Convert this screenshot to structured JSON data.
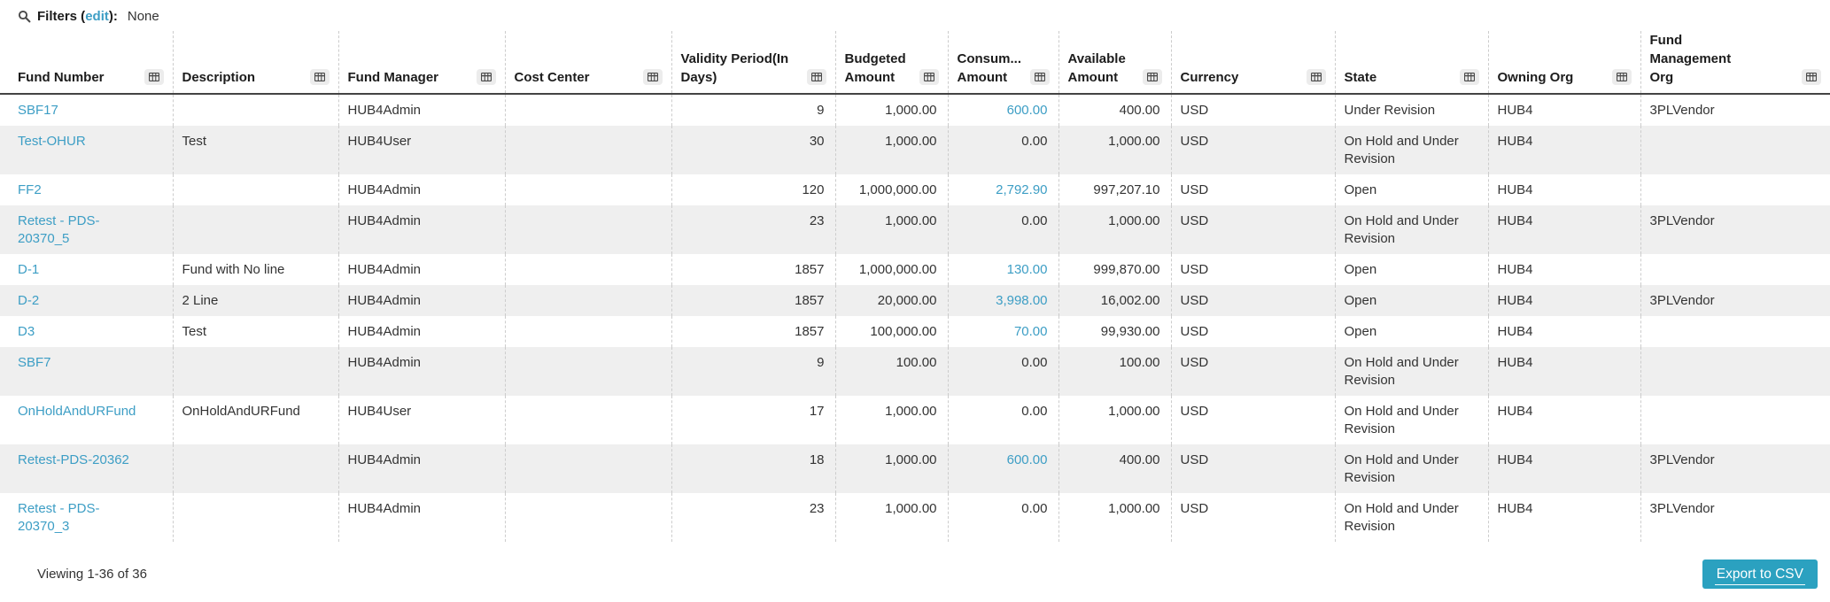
{
  "filters_bar": {
    "label_prefix": "Filters (",
    "edit_link": "edit",
    "label_suffix": "):",
    "value": "None"
  },
  "table": {
    "columns": [
      {
        "id": "fund_number",
        "label": "Fund Number",
        "align": "left"
      },
      {
        "id": "description",
        "label": "Description",
        "align": "left"
      },
      {
        "id": "fund_manager",
        "label": "Fund Manager",
        "align": "left"
      },
      {
        "id": "cost_center",
        "label": "Cost Center",
        "align": "left"
      },
      {
        "id": "validity_period",
        "label": "Validity Period(In Days)",
        "align": "right"
      },
      {
        "id": "budgeted_amount",
        "label": "Budgeted Amount",
        "align": "right"
      },
      {
        "id": "consumed_amount",
        "label": "Consum... Amount",
        "align": "right"
      },
      {
        "id": "available_amount",
        "label": "Available Amount",
        "align": "right"
      },
      {
        "id": "currency",
        "label": "Currency",
        "align": "left"
      },
      {
        "id": "state",
        "label": "State",
        "align": "left"
      },
      {
        "id": "owning_org",
        "label": "Owning Org",
        "align": "left"
      },
      {
        "id": "fund_management_org",
        "label": "Fund Management Org",
        "align": "left"
      }
    ],
    "rows": [
      {
        "fund_number": "SBF17",
        "description": "",
        "fund_manager": "HUB4Admin",
        "cost_center": "",
        "validity_period": "9",
        "budgeted_amount": "1,000.00",
        "consumed_amount": "600.00",
        "consumed_is_link": true,
        "available_amount": "400.00",
        "currency": "USD",
        "state": "Under Revision",
        "owning_org": "HUB4",
        "fund_management_org": "3PLVendor"
      },
      {
        "fund_number": "Test-OHUR",
        "description": "Test",
        "fund_manager": "HUB4User",
        "cost_center": "",
        "validity_period": "30",
        "budgeted_amount": "1,000.00",
        "consumed_amount": "0.00",
        "consumed_is_link": false,
        "available_amount": "1,000.00",
        "currency": "USD",
        "state": "On Hold and Under Revision",
        "owning_org": "HUB4",
        "fund_management_org": ""
      },
      {
        "fund_number": "FF2",
        "description": "",
        "fund_manager": "HUB4Admin",
        "cost_center": "",
        "validity_period": "120",
        "budgeted_amount": "1,000,000.00",
        "consumed_amount": "2,792.90",
        "consumed_is_link": true,
        "available_amount": "997,207.10",
        "currency": "USD",
        "state": "Open",
        "owning_org": "HUB4",
        "fund_management_org": ""
      },
      {
        "fund_number": "Retest - PDS-20370_5",
        "description": "",
        "fund_manager": "HUB4Admin",
        "cost_center": "",
        "validity_period": "23",
        "budgeted_amount": "1,000.00",
        "consumed_amount": "0.00",
        "consumed_is_link": false,
        "available_amount": "1,000.00",
        "currency": "USD",
        "state": "On Hold and Under Revision",
        "owning_org": "HUB4",
        "fund_management_org": "3PLVendor"
      },
      {
        "fund_number": "D-1",
        "description": "Fund with No line",
        "fund_manager": "HUB4Admin",
        "cost_center": "",
        "validity_period": "1857",
        "budgeted_amount": "1,000,000.00",
        "consumed_amount": "130.00",
        "consumed_is_link": true,
        "available_amount": "999,870.00",
        "currency": "USD",
        "state": "Open",
        "owning_org": "HUB4",
        "fund_management_org": ""
      },
      {
        "fund_number": "D-2",
        "description": "2 Line",
        "fund_manager": "HUB4Admin",
        "cost_center": "",
        "validity_period": "1857",
        "budgeted_amount": "20,000.00",
        "consumed_amount": "3,998.00",
        "consumed_is_link": true,
        "available_amount": "16,002.00",
        "currency": "USD",
        "state": "Open",
        "owning_org": "HUB4",
        "fund_management_org": "3PLVendor"
      },
      {
        "fund_number": "D3",
        "description": "Test",
        "fund_manager": "HUB4Admin",
        "cost_center": "",
        "validity_period": "1857",
        "budgeted_amount": "100,000.00",
        "consumed_amount": "70.00",
        "consumed_is_link": true,
        "available_amount": "99,930.00",
        "currency": "USD",
        "state": "Open",
        "owning_org": "HUB4",
        "fund_management_org": ""
      },
      {
        "fund_number": "SBF7",
        "description": "",
        "fund_manager": "HUB4Admin",
        "cost_center": "",
        "validity_period": "9",
        "budgeted_amount": "100.00",
        "consumed_amount": "0.00",
        "consumed_is_link": false,
        "available_amount": "100.00",
        "currency": "USD",
        "state": "On Hold and Under Revision",
        "owning_org": "HUB4",
        "fund_management_org": ""
      },
      {
        "fund_number": "OnHoldAndURFund",
        "description": "OnHoldAndURFund",
        "fund_manager": "HUB4User",
        "cost_center": "",
        "validity_period": "17",
        "budgeted_amount": "1,000.00",
        "consumed_amount": "0.00",
        "consumed_is_link": false,
        "available_amount": "1,000.00",
        "currency": "USD",
        "state": "On Hold and Under Revision",
        "owning_org": "HUB4",
        "fund_management_org": ""
      },
      {
        "fund_number": "Retest-PDS-20362",
        "description": "",
        "fund_manager": "HUB4Admin",
        "cost_center": "",
        "validity_period": "18",
        "budgeted_amount": "1,000.00",
        "consumed_amount": "600.00",
        "consumed_is_link": true,
        "available_amount": "400.00",
        "currency": "USD",
        "state": "On Hold and Under Revision",
        "owning_org": "HUB4",
        "fund_management_org": "3PLVendor"
      },
      {
        "fund_number": "Retest - PDS-20370_3",
        "description": "",
        "fund_manager": "HUB4Admin",
        "cost_center": "",
        "validity_period": "23",
        "budgeted_amount": "1,000.00",
        "consumed_amount": "0.00",
        "consumed_is_link": false,
        "available_amount": "1,000.00",
        "currency": "USD",
        "state": "On Hold and Under Revision",
        "owning_org": "HUB4",
        "fund_management_org": "3PLVendor"
      }
    ]
  },
  "footer": {
    "viewing_text": "Viewing 1-36 of 36",
    "export_button": "Export to CSV"
  },
  "colors": {
    "link_blue": "#3d9ec5",
    "button_teal": "#2ba1c0",
    "row_stripe": "#efefef",
    "column_divider": "#cccccc",
    "text": "#333333"
  },
  "icons": {
    "search": "magnifier",
    "column_menu": "grid-table"
  }
}
